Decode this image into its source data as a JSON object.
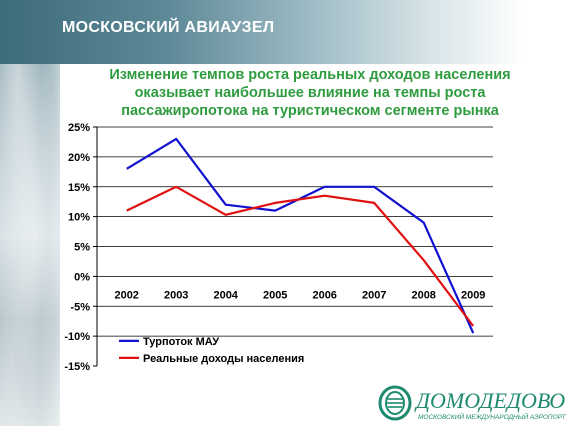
{
  "header": {
    "title": "МОСКОВСКИЙ АВИАУЗЕЛ"
  },
  "chart_title": {
    "line1": "Изменение темпов роста реальных доходов населения",
    "line2": "оказывает наибольшее влияние на темпы роста",
    "line3": "пассажиропотока на туристическом сегменте рынка"
  },
  "chart_data": {
    "type": "line",
    "x": [
      "2002",
      "2003",
      "2004",
      "2005",
      "2006",
      "2007",
      "2008",
      "2009"
    ],
    "ylim": [
      -15,
      25
    ],
    "yticks": [
      "25%",
      "20%",
      "15%",
      "10%",
      "5%",
      "0%",
      "-5%",
      "-10%",
      "-15%"
    ],
    "grid": true,
    "legend_position": "bottom-left",
    "series": [
      {
        "name": "Турпоток МАУ",
        "values": [
          18,
          23,
          12,
          11,
          15,
          15,
          9,
          -9.5
        ],
        "color": "#1010d0"
      },
      {
        "name": "Реальные доходы населения",
        "values": [
          11,
          15,
          10.3,
          12.3,
          13.5,
          12.3,
          2.7,
          -8.3
        ],
        "color": "#e01010"
      }
    ]
  },
  "logo": {
    "name": "ДОМОДЕДОВО",
    "subtitle": "МОСКОВСКИЙ МЕЖДУНАРОДНЫЙ АЭРОПОРТ",
    "icon": "airport-ring-logo"
  }
}
